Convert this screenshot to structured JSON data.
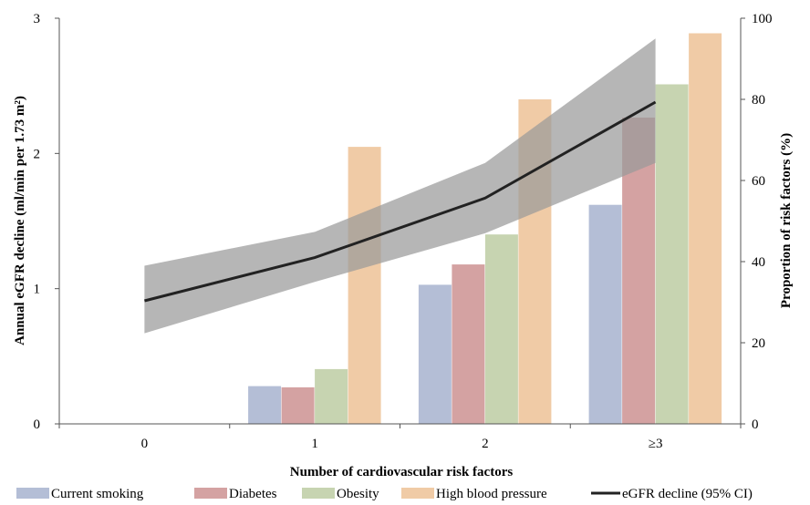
{
  "chart_data": {
    "type": "bar",
    "categories": [
      "0",
      "1",
      "2",
      "≥3"
    ],
    "xlabel": "Number of cardiovascular risk factors",
    "ylabel_left": "Annual eGFR decline (ml/min per 1.73 m²)",
    "ylabel_right": "Proportion of risk factors (%)",
    "ylim_left": [
      0,
      3
    ],
    "yticks_left": [
      "0",
      "1",
      "2",
      "3"
    ],
    "ylim_right": [
      0,
      100
    ],
    "yticks_right": [
      "0",
      "20",
      "40",
      "60",
      "80",
      "100"
    ],
    "grid": false,
    "legend_position": "bottom",
    "series": [
      {
        "name": "Current smoking",
        "color": "#b4bed6",
        "values": [
          0,
          9.3,
          34.3,
          54
        ]
      },
      {
        "name": "Diabetes",
        "color": "#d4a2a2",
        "values": [
          0,
          9,
          39.3,
          75.5
        ]
      },
      {
        "name": "Obesity",
        "color": "#c7d4b1",
        "values": [
          0,
          13.5,
          46.7,
          83.7
        ]
      },
      {
        "name": "High blood pressure",
        "color": "#f0cba6",
        "values": [
          0,
          68.3,
          80,
          96.3
        ]
      }
    ],
    "line": {
      "name": "eGFR decline (95% CI)",
      "color": "#222222",
      "band_color": "#9a9a9a",
      "values": [
        0.91,
        1.23,
        1.67,
        2.38
      ],
      "ci_lower": [
        0.67,
        1.05,
        1.41,
        1.93
      ],
      "ci_upper": [
        1.17,
        1.42,
        1.93,
        2.85
      ]
    }
  }
}
